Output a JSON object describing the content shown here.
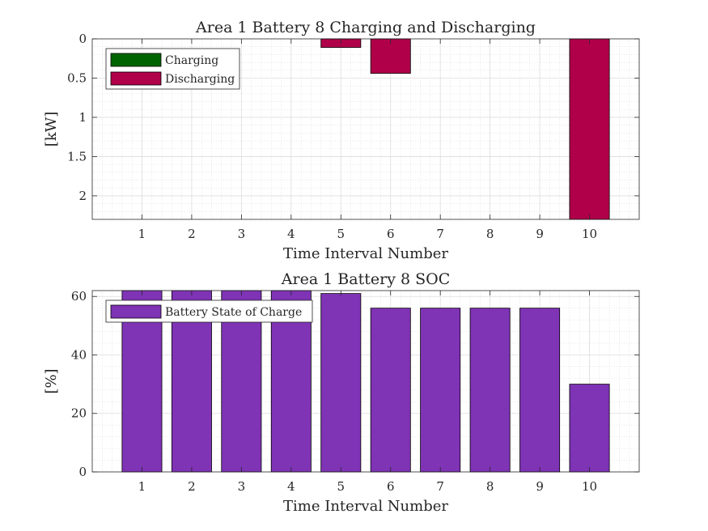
{
  "chart_data": [
    {
      "type": "bar",
      "title": "Area 1 Battery 8 Charging and Discharging",
      "xlabel": "Time Interval Number",
      "ylabel": "[kW]",
      "categories": [
        "1",
        "2",
        "3",
        "4",
        "5",
        "6",
        "7",
        "8",
        "9",
        "10"
      ],
      "y_direction": "reverse",
      "ylim": [
        0,
        2.3
      ],
      "yticks": [
        "0",
        "0.5",
        "1",
        "1.5",
        "2"
      ],
      "grid": true,
      "legend_position": "top-left",
      "series": [
        {
          "name": "Charging",
          "color": "#006400",
          "values": [
            0,
            0,
            0,
            0,
            0,
            0,
            0,
            0,
            0,
            0
          ]
        },
        {
          "name": "Discharging",
          "color": "#b0004a",
          "values": [
            0,
            0,
            0,
            0,
            0.11,
            0.44,
            0,
            0,
            0,
            2.3
          ]
        }
      ]
    },
    {
      "type": "bar",
      "title": "Area 1 Battery 8 SOC",
      "xlabel": "Time Interval Number",
      "ylabel": "[%]",
      "categories": [
        "1",
        "2",
        "3",
        "4",
        "5",
        "6",
        "7",
        "8",
        "9",
        "10"
      ],
      "ylim": [
        0,
        62
      ],
      "yticks": [
        "0",
        "20",
        "40",
        "60"
      ],
      "grid": true,
      "legend_position": "top-left",
      "series": [
        {
          "name": "Battery State of Charge",
          "color": "#7f33b5",
          "values": [
            62,
            62,
            62,
            62,
            61,
            56,
            56,
            56,
            56,
            30
          ]
        }
      ]
    }
  ]
}
